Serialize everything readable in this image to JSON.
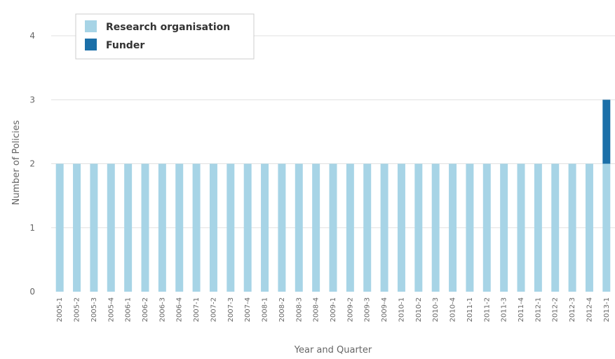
{
  "chart_data": {
    "type": "bar",
    "stacked": true,
    "xlabel": "Year and Quarter",
    "ylabel": "Number of Policies",
    "ylim": [
      0,
      4
    ],
    "yticks": [
      0,
      1,
      2,
      3,
      4
    ],
    "grid": true,
    "legend": "top-left",
    "categories": [
      "2005-1",
      "2005-2",
      "2005-3",
      "2005-4",
      "2006-1",
      "2006-2",
      "2006-3",
      "2006-4",
      "2007-1",
      "2007-2",
      "2007-3",
      "2007-4",
      "2008-1",
      "2008-2",
      "2008-3",
      "2008-4",
      "2009-1",
      "2009-2",
      "2009-3",
      "2009-4",
      "2010-1",
      "2010-2",
      "2010-3",
      "2010-4",
      "2011-1",
      "2011-2",
      "2011-3",
      "2011-4",
      "2012-1",
      "2012-2",
      "2012-3",
      "2012-4",
      "2013-1"
    ],
    "series": [
      {
        "name": "Research organisation",
        "color": "#a7d4e6",
        "values": [
          2,
          2,
          2,
          2,
          2,
          2,
          2,
          2,
          2,
          2,
          2,
          2,
          2,
          2,
          2,
          2,
          2,
          2,
          2,
          2,
          2,
          2,
          2,
          2,
          2,
          2,
          2,
          2,
          2,
          2,
          2,
          2,
          2
        ]
      },
      {
        "name": "Funder",
        "color": "#1b6fa8",
        "values": [
          0,
          0,
          0,
          0,
          0,
          0,
          0,
          0,
          0,
          0,
          0,
          0,
          0,
          0,
          0,
          0,
          0,
          0,
          0,
          0,
          0,
          0,
          0,
          0,
          0,
          0,
          0,
          0,
          0,
          0,
          0,
          0,
          1
        ]
      }
    ]
  }
}
